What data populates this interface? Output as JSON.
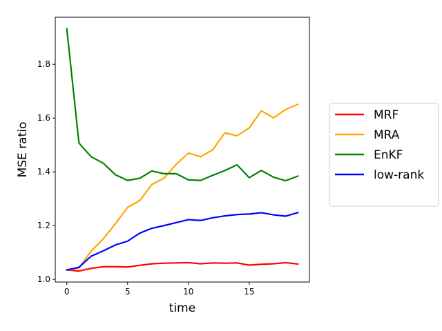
{
  "chart_data": {
    "type": "line",
    "xlabel": "time",
    "ylabel": "MSE ratio",
    "xlim": [
      -0.95,
      19.95
    ],
    "ylim": [
      0.99,
      1.975
    ],
    "xticks": [
      0,
      5,
      10,
      15
    ],
    "xtick_labels": [
      "0",
      "5",
      "10",
      "15"
    ],
    "yticks": [
      1.0,
      1.2,
      1.4,
      1.6,
      1.8
    ],
    "ytick_labels": [
      "1.0",
      "1.2",
      "1.4",
      "1.6",
      "1.8"
    ],
    "grid": false,
    "legend_position": "right, outside plot",
    "x": [
      0,
      1,
      2,
      3,
      4,
      5,
      6,
      7,
      8,
      9,
      10,
      11,
      12,
      13,
      14,
      15,
      16,
      17,
      18,
      19
    ],
    "series": [
      {
        "name": "MRF",
        "color": "#ff0000",
        "values": [
          1.035,
          1.031,
          1.041,
          1.047,
          1.047,
          1.046,
          1.052,
          1.058,
          1.06,
          1.061,
          1.062,
          1.058,
          1.061,
          1.06,
          1.061,
          1.053,
          1.056,
          1.058,
          1.062,
          1.057
        ]
      },
      {
        "name": "MRA",
        "color": "#ffa500",
        "values": [
          1.035,
          1.042,
          1.105,
          1.151,
          1.207,
          1.268,
          1.293,
          1.353,
          1.377,
          1.428,
          1.47,
          1.456,
          1.482,
          1.545,
          1.534,
          1.563,
          1.627,
          1.601,
          1.632,
          1.651
        ]
      },
      {
        "name": "EnKF",
        "color": "#008000",
        "values": [
          1.932,
          1.507,
          1.456,
          1.432,
          1.389,
          1.368,
          1.376,
          1.403,
          1.393,
          1.393,
          1.37,
          1.368,
          1.387,
          1.405,
          1.426,
          1.378,
          1.405,
          1.38,
          1.367,
          1.384
        ]
      },
      {
        "name": "low-rank",
        "color": "#0000ff",
        "values": [
          1.035,
          1.045,
          1.086,
          1.106,
          1.128,
          1.142,
          1.172,
          1.19,
          1.2,
          1.211,
          1.222,
          1.219,
          1.229,
          1.236,
          1.241,
          1.243,
          1.248,
          1.24,
          1.235,
          1.248
        ]
      }
    ]
  }
}
